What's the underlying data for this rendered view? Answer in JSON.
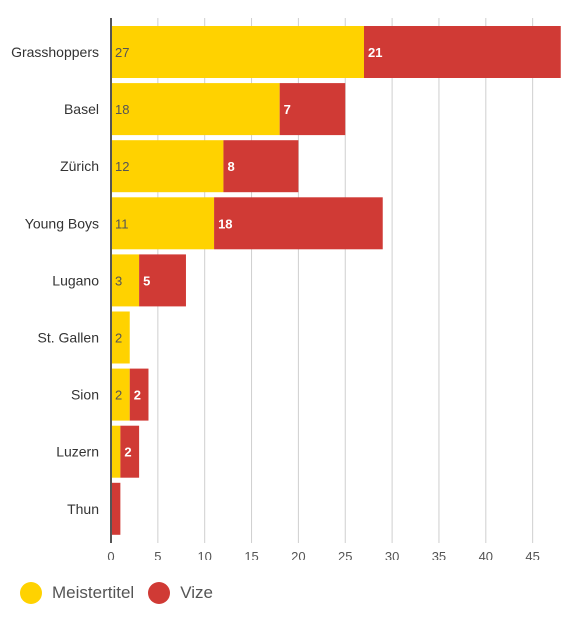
{
  "chart_data": {
    "type": "bar",
    "orientation": "horizontal",
    "stacked": true,
    "categories": [
      "Grasshoppers",
      "Basel",
      "Zürich",
      "Young Boys",
      "Lugano",
      "St. Gallen",
      "Sion",
      "Luzern",
      "Thun"
    ],
    "series": [
      {
        "name": "Meistertitel",
        "color": "#FFD200",
        "values": [
          27,
          18,
          12,
          11,
          3,
          2,
          2,
          1,
          0
        ],
        "labels": [
          "27",
          "18",
          "12",
          "11",
          "3",
          "2",
          "2",
          "",
          ""
        ]
      },
      {
        "name": "Vize",
        "color": "#D03A35",
        "values": [
          21,
          7,
          8,
          18,
          5,
          0,
          2,
          2,
          1
        ],
        "labels": [
          "21",
          "7",
          "8",
          "18",
          "5",
          "",
          "2",
          "2",
          ""
        ]
      }
    ],
    "xlim": [
      0,
      48
    ],
    "xticks": [
      0,
      5,
      10,
      15,
      20,
      25,
      30,
      35,
      40,
      45
    ],
    "grid": true,
    "legend_position": "bottom-left",
    "title": "",
    "xlabel": "",
    "ylabel": ""
  },
  "legend": {
    "items": [
      {
        "label": "Meistertitel",
        "color": "#FFD200"
      },
      {
        "label": "Vize",
        "color": "#D03A35"
      }
    ]
  }
}
